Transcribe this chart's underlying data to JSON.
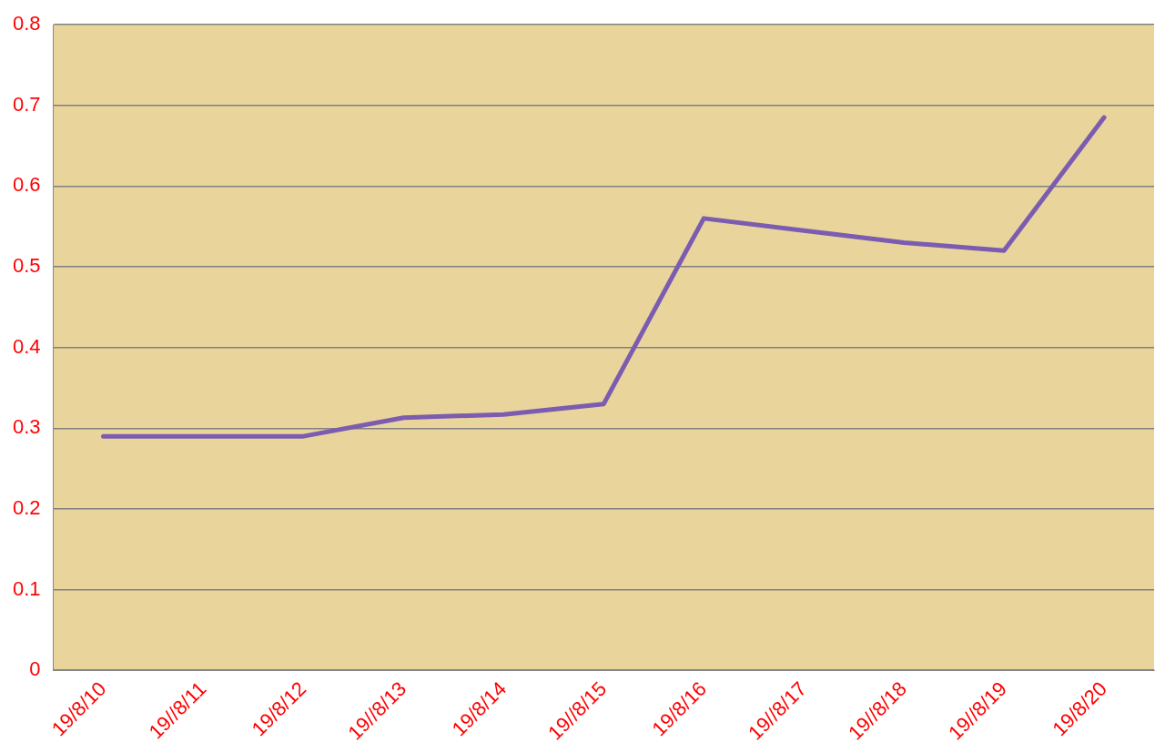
{
  "chart_data": {
    "type": "line",
    "categories": [
      "19/8/10",
      "19//8/11",
      "19/8/12",
      "19//8/13",
      "19/8/14",
      "19//8/15",
      "19/8/16",
      "19//8/17",
      "19//8/18",
      "19//8/19",
      "19/8/20"
    ],
    "series": [
      {
        "color": "#7b5cb0",
        "values": [
          0.29,
          0.29,
          0.29,
          0.313,
          0.317,
          0.33,
          0.56,
          0.545,
          0.53,
          0.52,
          0.685
        ]
      }
    ],
    "ylim": [
      0,
      0.8
    ],
    "yticks": [
      0,
      0.1,
      0.2,
      0.3,
      0.4,
      0.5,
      0.6,
      0.7,
      0.8
    ],
    "grid": "y",
    "legend": false,
    "marker": "none",
    "line_style": "solid"
  }
}
